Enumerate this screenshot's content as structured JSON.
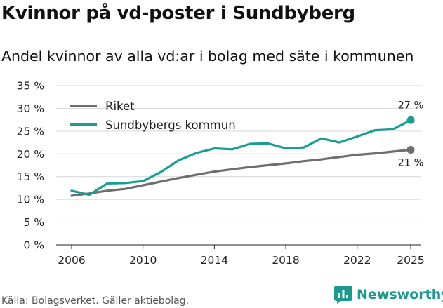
{
  "title": "Kvinnor på vd-poster i Sundbyberg",
  "subtitle": "Andel kvinnor av alla vd:ar i bolag med säte i kommunen",
  "source": "Källa: Bolagsverket. Gäller aktiebolag.",
  "brand": "Newsworthy",
  "colors": {
    "riket": "#6e6e6e",
    "sundbyberg": "#1a9e92",
    "brand": "#1b9b8f",
    "grid": "#d6d6d6"
  },
  "chart_data": {
    "type": "line",
    "title": "Kvinnor på vd-poster i Sundbyberg",
    "subtitle": "Andel kvinnor av alla vd:ar i bolag med säte i kommunen",
    "xlabel": "",
    "ylabel": "",
    "x": [
      2006,
      2007,
      2008,
      2009,
      2010,
      2011,
      2012,
      2013,
      2014,
      2015,
      2016,
      2017,
      2018,
      2019,
      2020,
      2021,
      2022,
      2023,
      2024,
      2025
    ],
    "xlim": [
      2006,
      2025
    ],
    "ylim": [
      0,
      35
    ],
    "x_ticks": [
      "2006",
      "2010",
      "2014",
      "2018",
      "2022",
      "2025"
    ],
    "y_ticks": [
      "0 %",
      "5 %",
      "10 %",
      "15 %",
      "20 %",
      "25 %",
      "30 %",
      "35 %"
    ],
    "grid": true,
    "legend_position": "top-left",
    "series": [
      {
        "name": "Riket",
        "color": "#6e6e6e",
        "values": [
          10.8,
          11.3,
          11.9,
          12.3,
          13.1,
          13.9,
          14.7,
          15.4,
          16.1,
          16.6,
          17.1,
          17.5,
          17.9,
          18.4,
          18.8,
          19.3,
          19.8,
          20.1,
          20.5,
          20.9
        ],
        "end_label": "21 %"
      },
      {
        "name": "Sundbybergs kommun",
        "color": "#1a9e92",
        "values": [
          11.9,
          11.0,
          13.5,
          13.6,
          14.0,
          16.0,
          18.6,
          20.2,
          21.2,
          21.0,
          22.2,
          22.3,
          21.2,
          21.4,
          23.4,
          22.5,
          23.8,
          25.2,
          25.4,
          27.4
        ],
        "end_label": "27 %"
      }
    ]
  }
}
